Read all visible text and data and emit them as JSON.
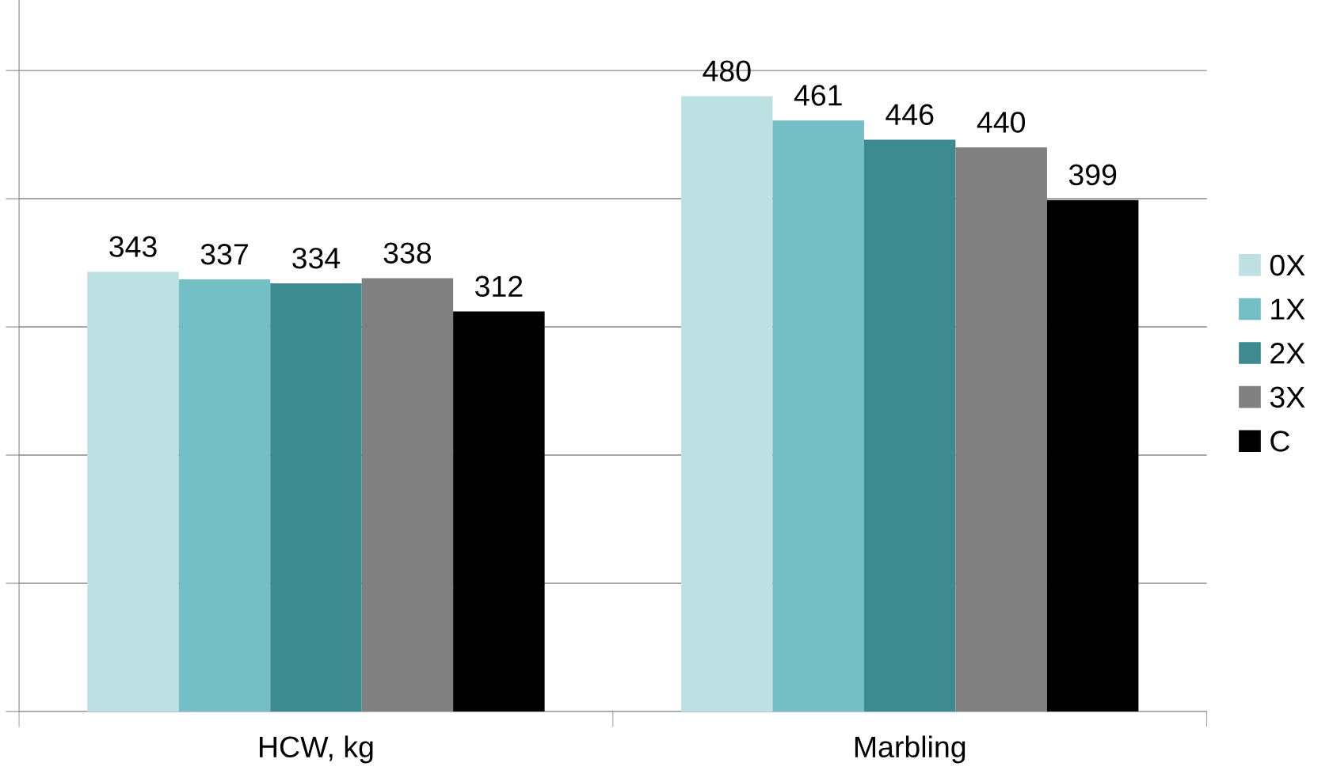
{
  "chart_data": {
    "type": "bar",
    "categories": [
      "HCW, kg",
      "Marbling"
    ],
    "series": [
      {
        "name": "0X",
        "color": "#bde0e3",
        "values": [
          343,
          480
        ]
      },
      {
        "name": "1X",
        "color": "#74bec5",
        "values": [
          337,
          461
        ]
      },
      {
        "name": "2X",
        "color": "#3e8a91",
        "values": [
          334,
          446
        ]
      },
      {
        "name": "3X",
        "color": "#808080",
        "values": [
          338,
          440
        ]
      },
      {
        "name": "C",
        "color": "#000000",
        "values": [
          312,
          399
        ]
      }
    ],
    "ylim": [
      0,
      555
    ],
    "yticks": [
      {
        "value": 0,
        "label": null
      },
      {
        "value": 100,
        "label": null
      },
      {
        "value": 200,
        "label": null
      },
      {
        "value": 300,
        "label": null
      },
      {
        "value": 400,
        "label": null
      },
      {
        "value": 500,
        "label": null
      }
    ],
    "tick_labels": "x",
    "grid": "y",
    "legend": "right",
    "data_labels": true
  }
}
